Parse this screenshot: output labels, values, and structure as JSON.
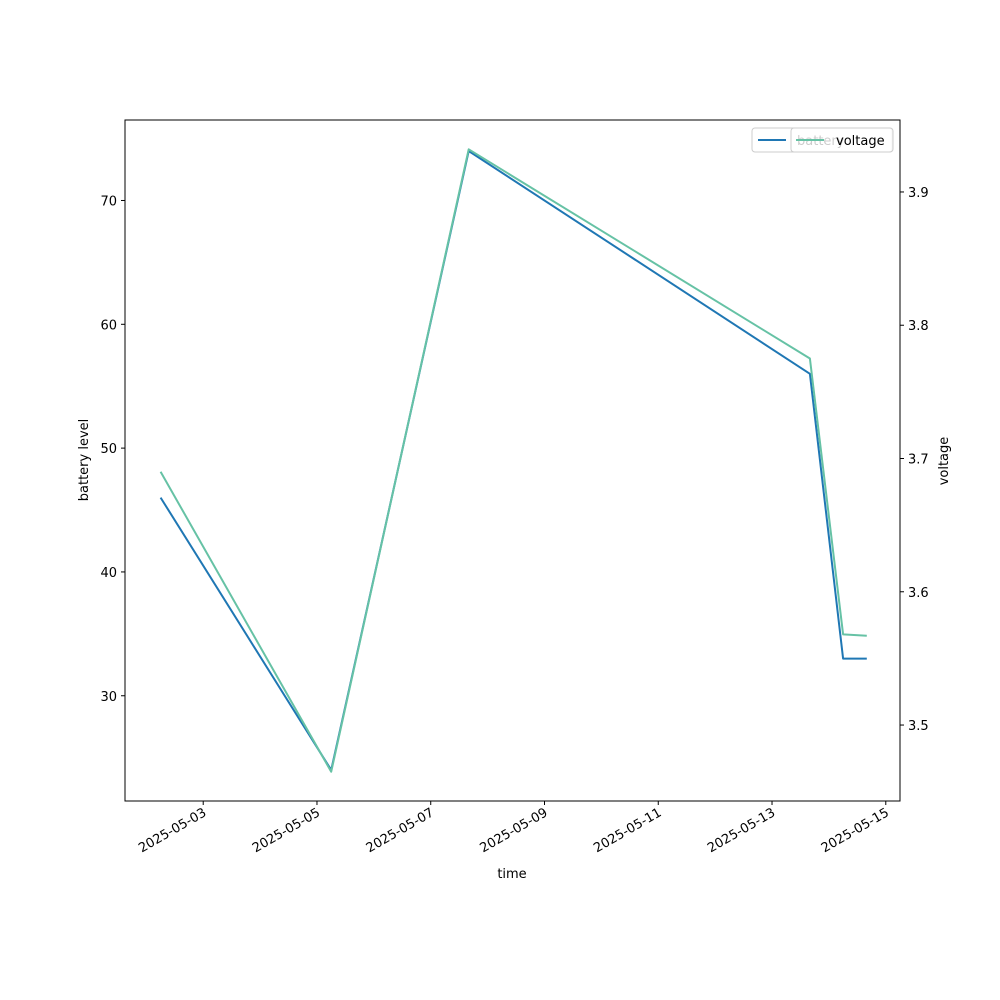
{
  "chart_data": {
    "type": "line",
    "xlabel": "time",
    "ylabel_left": "battery level",
    "ylabel_right": "voltage",
    "x_ticks": [
      "2025-05-03",
      "2025-05-05",
      "2025-05-07",
      "2025-05-09",
      "2025-05-11",
      "2025-05-13",
      "2025-05-15"
    ],
    "y_ticks_left": [
      30,
      40,
      50,
      60,
      70
    ],
    "y_ticks_right": [
      "3.5",
      "3.6",
      "3.7",
      "3.8",
      "3.9"
    ],
    "xlim": [
      "2025-05-01T15:00",
      "2025-05-15T06:00"
    ],
    "ylim_left": [
      21.5,
      76.5
    ],
    "ylim_right": [
      3.443,
      3.954
    ],
    "grid": false,
    "series": [
      {
        "name": "battery level",
        "axis": "left",
        "color": "#1f77b4",
        "points": [
          {
            "x": "2025-05-02T06:00",
            "y": 46
          },
          {
            "x": "2025-05-05T06:00",
            "y": 24
          },
          {
            "x": "2025-05-07T16:00",
            "y": 74
          },
          {
            "x": "2025-05-13T16:00",
            "y": 56
          },
          {
            "x": "2025-05-14T06:00",
            "y": 33
          },
          {
            "x": "2025-05-14T16:00",
            "y": 33
          }
        ]
      },
      {
        "name": "voltage",
        "axis": "right",
        "color": "#66c2a5",
        "points": [
          {
            "x": "2025-05-02T06:00",
            "y": 3.69
          },
          {
            "x": "2025-05-05T06:00",
            "y": 3.465
          },
          {
            "x": "2025-05-07T16:00",
            "y": 3.932
          },
          {
            "x": "2025-05-13T16:00",
            "y": 3.775
          },
          {
            "x": "2025-05-14T06:00",
            "y": 3.568
          },
          {
            "x": "2025-05-14T16:00",
            "y": 3.567
          }
        ]
      }
    ],
    "legends": [
      {
        "label": "battery",
        "color": "#1f77b4",
        "placement": "top-right",
        "overlapped": true
      },
      {
        "label": "voltage",
        "color": "#66c2a5",
        "placement": "top-right"
      }
    ]
  }
}
